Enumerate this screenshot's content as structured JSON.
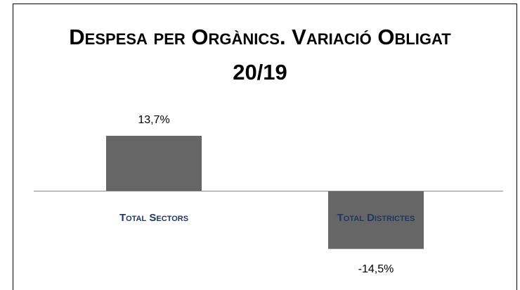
{
  "chart_data": {
    "type": "bar",
    "title": "Despesa per Orgànics. Variació Obligat 20/19",
    "categories": [
      "Total Sectors",
      "Total Districtes"
    ],
    "values": [
      13.7,
      -14.5
    ],
    "value_labels": [
      "13,7%",
      "-14,5%"
    ],
    "color": "#666666",
    "category_color": "#1f3864",
    "ylim": [
      -20,
      20
    ]
  }
}
